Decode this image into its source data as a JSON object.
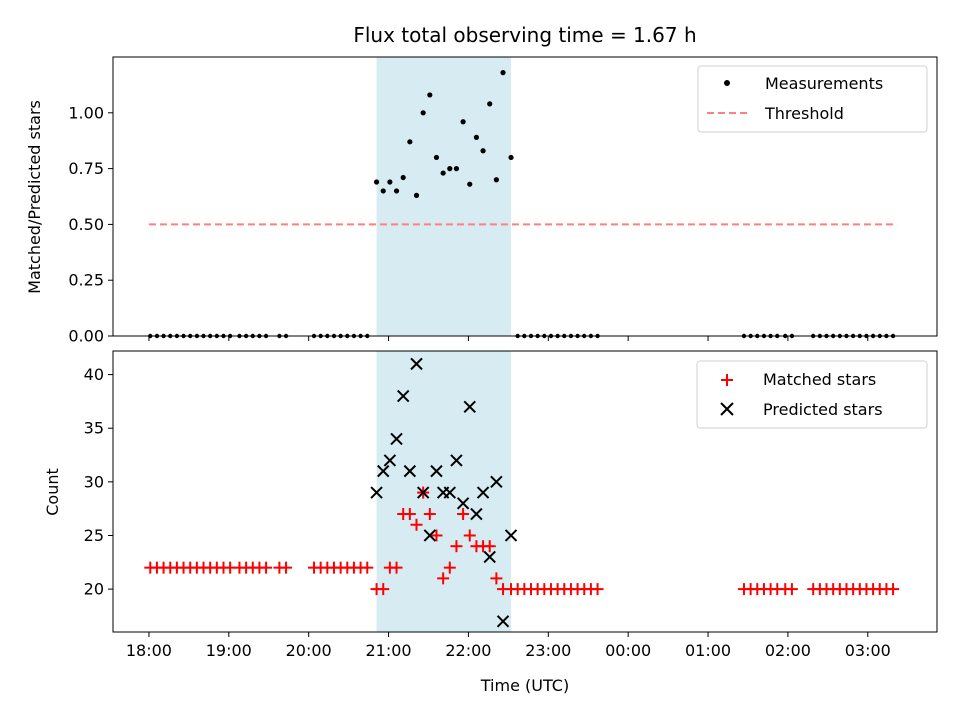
{
  "chart_data": [
    {
      "type": "scatter",
      "title": "Flux total observing time = 1.67 h",
      "ylabel": "Matched/Predicted stars",
      "xlabel": "",
      "xlim": [
        "17:33",
        "03:52"
      ],
      "ylim": [
        0.0,
        1.25
      ],
      "yticks": [
        "0.00",
        "0.25",
        "0.50",
        "0.75",
        "1.00"
      ],
      "grid": false,
      "legend_position": "top-right",
      "shaded_span": {
        "from": "20:51",
        "to": "22:32",
        "color": "#add8e6"
      },
      "series": [
        {
          "name": "Measurements",
          "marker": "dot",
          "color": "#000000",
          "x": [
            "20:51",
            "20:56",
            "21:01",
            "21:06",
            "21:11",
            "21:16",
            "21:21",
            "21:26",
            "21:31",
            "21:36",
            "21:41",
            "21:46",
            "21:51",
            "21:56",
            "22:01",
            "22:06",
            "22:11",
            "22:16",
            "22:21",
            "22:26",
            "22:32"
          ],
          "y": [
            0.69,
            0.65,
            0.69,
            0.65,
            0.71,
            0.87,
            0.63,
            1.0,
            1.08,
            0.8,
            0.73,
            0.75,
            0.75,
            0.96,
            0.68,
            0.89,
            0.83,
            1.04,
            0.7,
            1.18,
            0.8
          ]
        },
        {
          "name": "",
          "marker": "dot",
          "color": "#000000",
          "zero_groups": [
            {
              "from": "18:01",
              "to": "19:04",
              "step_min": 5
            },
            {
              "from": "19:08",
              "to": "19:28",
              "step_min": 5
            },
            {
              "from": "19:38",
              "to": "19:43",
              "step_min": 5
            },
            {
              "from": "20:04",
              "to": "20:45",
              "step_min": 5
            },
            {
              "from": "22:37",
              "to": "23:38",
              "step_min": 5
            },
            {
              "from": "01:27",
              "to": "01:54",
              "step_min": 5
            },
            {
              "from": "01:58",
              "to": "02:05",
              "step_min": 5
            },
            {
              "from": "02:19",
              "to": "03:22",
              "step_min": 5
            }
          ],
          "y": 0
        },
        {
          "name": "Threshold",
          "style": "dashed",
          "color": "#ff7f7f",
          "x": [
            "18:00",
            "03:22"
          ],
          "y": [
            0.5,
            0.5
          ]
        }
      ]
    },
    {
      "type": "scatter",
      "title": "",
      "xlabel": "Time (UTC)",
      "ylabel": "Count",
      "xlim": [
        "17:33",
        "03:52"
      ],
      "ylim": [
        16,
        42.2
      ],
      "xticks": [
        "18:00",
        "19:00",
        "20:00",
        "21:00",
        "22:00",
        "23:00",
        "00:00",
        "01:00",
        "02:00",
        "03:00"
      ],
      "yticks": [
        "20",
        "25",
        "30",
        "35",
        "40"
      ],
      "grid": false,
      "legend_position": "top-right",
      "shaded_span": {
        "from": "20:51",
        "to": "22:32",
        "color": "#add8e6"
      },
      "series": [
        {
          "name": "Matched stars",
          "marker": "plus",
          "color": "#ff0000",
          "groups": [
            {
              "from": "18:01",
              "to": "19:04",
              "step_min": 5,
              "y": 22
            },
            {
              "from": "19:08",
              "to": "19:28",
              "step_min": 5,
              "y": 22
            },
            {
              "from": "19:38",
              "to": "19:43",
              "step_min": 5,
              "y": 22
            },
            {
              "from": "20:04",
              "to": "20:45",
              "step_min": 5,
              "y": 22
            },
            {
              "from": "22:37",
              "to": "23:38",
              "step_min": 5,
              "y": 20
            },
            {
              "from": "01:27",
              "to": "01:54",
              "step_min": 5,
              "y": 20
            },
            {
              "from": "01:58",
              "to": "02:05",
              "step_min": 5,
              "y": 20
            },
            {
              "from": "02:19",
              "to": "03:22",
              "step_min": 5,
              "y": 20
            }
          ],
          "x": [
            "20:51",
            "20:56",
            "21:01",
            "21:06",
            "21:11",
            "21:16",
            "21:21",
            "21:26",
            "21:31",
            "21:36",
            "21:41",
            "21:46",
            "21:51",
            "21:56",
            "22:01",
            "22:06",
            "22:11",
            "22:16",
            "22:21",
            "22:26",
            "22:32"
          ],
          "y": [
            20,
            20,
            22,
            22,
            27,
            27,
            26,
            29,
            27,
            25,
            21,
            22,
            24,
            27,
            25,
            24,
            24,
            24,
            21,
            20,
            20
          ]
        },
        {
          "name": "Predicted stars",
          "marker": "x",
          "color": "#000000",
          "x": [
            "20:51",
            "20:56",
            "21:01",
            "21:06",
            "21:11",
            "21:16",
            "21:21",
            "21:26",
            "21:31",
            "21:36",
            "21:41",
            "21:46",
            "21:51",
            "21:56",
            "22:01",
            "22:06",
            "22:11",
            "22:16",
            "22:21",
            "22:26",
            "22:32"
          ],
          "y": [
            29,
            31,
            32,
            34,
            38,
            31,
            41,
            29,
            25,
            31,
            29,
            29,
            32,
            28,
            37,
            27,
            29,
            23,
            30,
            17,
            25
          ]
        }
      ]
    }
  ]
}
